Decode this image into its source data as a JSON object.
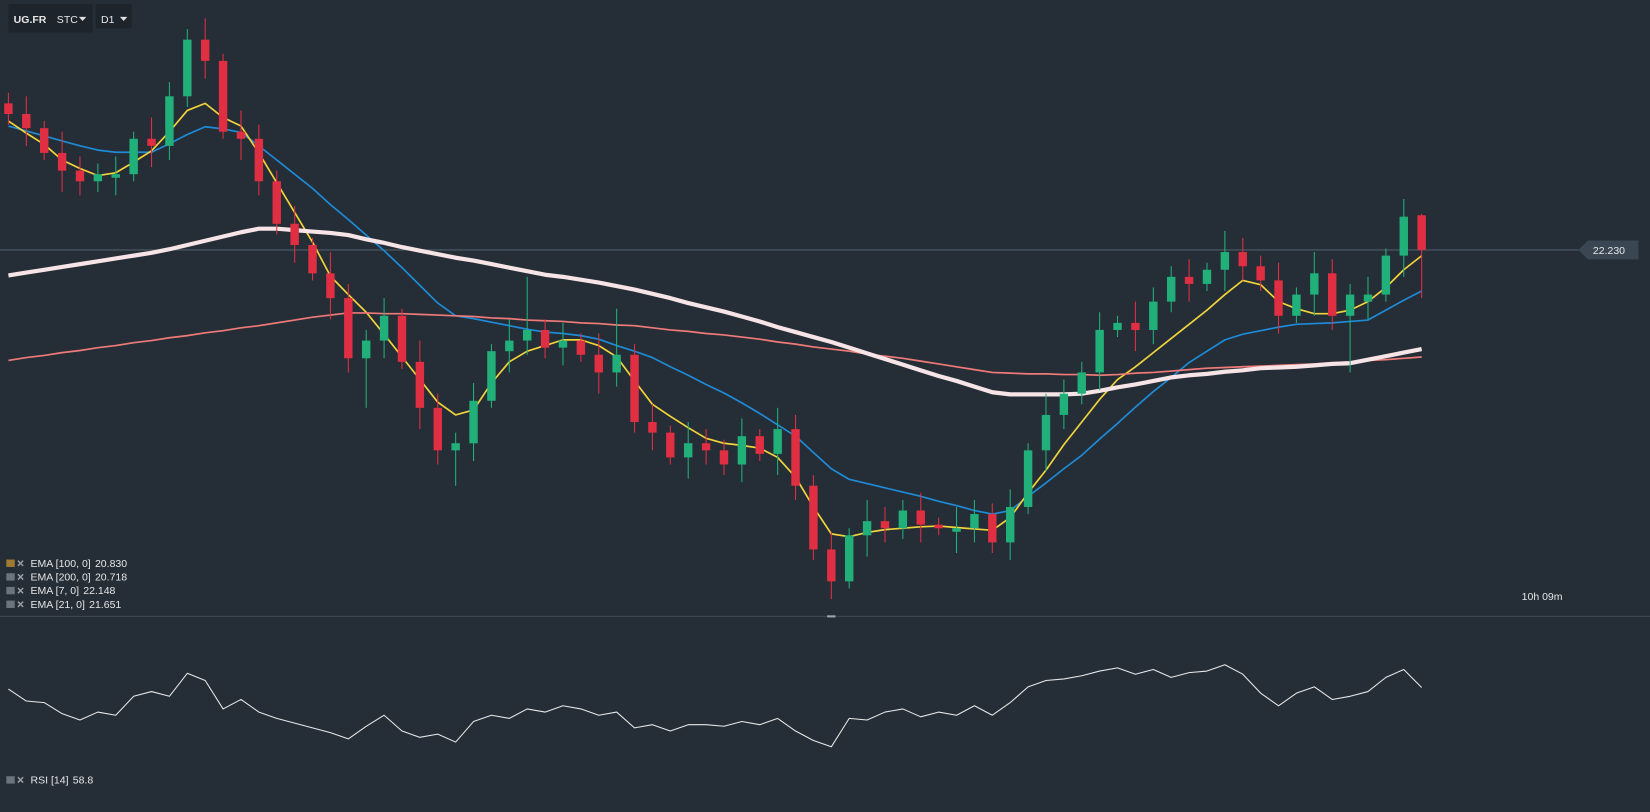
{
  "header": {
    "symbol": "UG.FR",
    "exchange": "STC",
    "timeframe": "D1"
  },
  "chart_data": [
    {
      "type": "candlestick",
      "ylim": [
        17.07,
        25.76
      ],
      "up_color": "#22b07a",
      "down_color": "#e02f42",
      "open": [
        24.3,
        24.15,
        23.95,
        23.6,
        23.35,
        23.2,
        23.25,
        23.3,
        23.8,
        23.7,
        24.4,
        25.2,
        24.9,
        23.9,
        23.8,
        23.2,
        22.6,
        22.3,
        21.9,
        21.55,
        20.7,
        20.95,
        21.3,
        20.65,
        20.0,
        19.4,
        19.5,
        20.1,
        20.8,
        20.95,
        21.1,
        20.85,
        20.95,
        20.75,
        20.5,
        20.75,
        19.8,
        19.65,
        19.3,
        19.5,
        19.4,
        19.2,
        19.6,
        19.35,
        19.7,
        18.9,
        18.0,
        17.55,
        18.2,
        18.4,
        18.3,
        18.55,
        18.35,
        18.25,
        18.3,
        18.5,
        18.1,
        18.6,
        19.4,
        19.9,
        20.2,
        20.5,
        21.1,
        21.2,
        21.1,
        21.5,
        21.85,
        21.75,
        21.95,
        22.2,
        22.0,
        21.8,
        21.3,
        21.6,
        21.9,
        21.3,
        21.5,
        21.6,
        22.15,
        22.72
      ],
      "high": [
        24.45,
        24.4,
        24.05,
        23.9,
        23.55,
        23.45,
        23.55,
        23.9,
        24.1,
        24.6,
        25.35,
        25.5,
        25.0,
        24.2,
        24.0,
        23.35,
        22.85,
        22.4,
        22.2,
        21.75,
        21.1,
        21.55,
        21.4,
        20.95,
        20.2,
        19.65,
        20.35,
        20.9,
        21.25,
        21.85,
        21.25,
        21.2,
        21.05,
        21.05,
        21.4,
        20.9,
        20.05,
        19.75,
        19.8,
        19.7,
        19.55,
        19.85,
        19.7,
        20.0,
        19.9,
        19.05,
        18.25,
        18.3,
        18.7,
        18.6,
        18.7,
        18.8,
        18.45,
        18.6,
        18.7,
        18.65,
        18.85,
        19.5,
        20.2,
        20.4,
        20.65,
        21.35,
        21.3,
        21.5,
        21.7,
        22.0,
        22.1,
        22.05,
        22.5,
        22.4,
        22.15,
        22.05,
        21.7,
        22.2,
        22.1,
        21.75,
        21.85,
        22.25,
        22.95,
        22.74
      ],
      "low": [
        24.0,
        23.7,
        23.5,
        23.05,
        23.0,
        23.05,
        23.0,
        23.2,
        23.4,
        23.5,
        24.25,
        24.65,
        23.8,
        23.5,
        23.0,
        22.45,
        22.05,
        21.8,
        21.25,
        20.5,
        20.0,
        20.7,
        20.55,
        19.7,
        19.2,
        18.9,
        19.25,
        20.0,
        20.5,
        20.75,
        20.7,
        20.6,
        20.65,
        20.2,
        20.3,
        19.65,
        19.4,
        19.2,
        19.0,
        19.2,
        19.05,
        18.95,
        19.25,
        19.05,
        18.7,
        17.85,
        17.3,
        17.45,
        17.9,
        18.1,
        18.15,
        18.1,
        18.2,
        17.95,
        18.1,
        17.95,
        17.85,
        18.5,
        19.1,
        19.7,
        20.05,
        20.25,
        21.0,
        20.8,
        20.9,
        21.35,
        21.5,
        21.65,
        21.65,
        21.8,
        21.65,
        21.05,
        21.2,
        21.3,
        21.1,
        20.5,
        21.25,
        21.5,
        21.85,
        21.55
      ],
      "close": [
        24.15,
        23.95,
        23.6,
        23.35,
        23.2,
        23.3,
        23.3,
        23.8,
        23.7,
        24.4,
        25.2,
        24.9,
        23.9,
        23.8,
        23.2,
        22.6,
        22.3,
        21.9,
        21.55,
        20.7,
        20.95,
        21.3,
        20.65,
        20.0,
        19.4,
        19.5,
        20.1,
        20.8,
        20.95,
        21.1,
        20.85,
        20.95,
        20.75,
        20.5,
        20.75,
        19.8,
        19.65,
        19.3,
        19.5,
        19.4,
        19.2,
        19.6,
        19.35,
        19.7,
        18.9,
        18.0,
        17.55,
        18.2,
        18.4,
        18.3,
        18.55,
        18.35,
        18.3,
        18.3,
        18.5,
        18.1,
        18.6,
        19.4,
        19.9,
        20.2,
        20.5,
        21.1,
        21.2,
        21.1,
        21.5,
        21.85,
        21.75,
        21.95,
        22.2,
        22.0,
        21.8,
        21.3,
        21.6,
        21.9,
        21.3,
        21.6,
        21.6,
        22.15,
        22.7,
        22.23
      ],
      "series": [
        {
          "name": "EMA [100,  0]",
          "last": {
            "value": 20.83,
            "label": "20.830"
          },
          "color": "#f7e4e6",
          "width": 4,
          "values": [
            21.87,
            21.91,
            21.95,
            21.99,
            22.03,
            22.07,
            22.11,
            22.15,
            22.19,
            22.24,
            22.3,
            22.36,
            22.42,
            22.48,
            22.53,
            22.53,
            22.51,
            22.49,
            22.47,
            22.44,
            22.38,
            22.33,
            22.27,
            22.22,
            22.17,
            22.12,
            22.08,
            22.03,
            21.98,
            21.93,
            21.88,
            21.85,
            21.81,
            21.77,
            21.72,
            21.67,
            21.61,
            21.55,
            21.48,
            21.42,
            21.36,
            21.29,
            21.22,
            21.14,
            21.07,
            21.0,
            20.93,
            20.85,
            20.77,
            20.69,
            20.61,
            20.53,
            20.45,
            20.38,
            20.3,
            20.22,
            20.19,
            20.19,
            20.19,
            20.19,
            20.2,
            20.24,
            20.29,
            20.33,
            20.38,
            20.43,
            20.46,
            20.48,
            20.51,
            20.53,
            20.56,
            20.57,
            20.58,
            20.6,
            20.62,
            20.63,
            20.68,
            20.73,
            20.78,
            20.83
          ]
        },
        {
          "name": "EMA [200,  0]",
          "last": 20.718,
          "color": "#f07a78",
          "width": 1.6,
          "values": [
            20.67,
            20.71,
            20.74,
            20.78,
            20.81,
            20.85,
            20.88,
            20.92,
            20.95,
            20.99,
            21.02,
            21.06,
            21.09,
            21.13,
            21.16,
            21.2,
            21.24,
            21.28,
            21.31,
            21.34,
            21.34,
            21.33,
            21.33,
            21.32,
            21.31,
            21.3,
            21.29,
            21.27,
            21.26,
            21.24,
            21.23,
            21.22,
            21.2,
            21.19,
            21.17,
            21.16,
            21.13,
            21.1,
            21.08,
            21.05,
            21.03,
            21.0,
            20.97,
            20.93,
            20.9,
            20.86,
            20.83,
            20.8,
            20.76,
            20.73,
            20.7,
            20.66,
            20.62,
            20.58,
            20.54,
            20.5,
            20.49,
            20.48,
            20.48,
            20.47,
            20.47,
            20.46,
            20.47,
            20.49,
            20.5,
            20.52,
            20.54,
            20.56,
            20.57,
            20.58,
            20.59,
            20.6,
            20.61,
            20.62,
            20.64,
            20.65,
            20.67,
            20.68,
            20.7,
            20.718
          ]
        },
        {
          "name": "EMA [7,  0]",
          "last": 22.148,
          "color": "#f2d43a",
          "width": 1.6,
          "values": [
            24.05,
            23.88,
            23.72,
            23.5,
            23.38,
            23.28,
            23.32,
            23.47,
            23.63,
            23.9,
            24.2,
            24.3,
            24.1,
            23.98,
            23.6,
            23.18,
            22.76,
            22.34,
            21.86,
            21.6,
            21.35,
            21.04,
            20.72,
            20.4,
            20.08,
            19.9,
            19.97,
            20.35,
            20.65,
            20.8,
            20.88,
            20.96,
            20.96,
            20.88,
            20.72,
            20.38,
            20.05,
            19.88,
            19.72,
            19.57,
            19.5,
            19.47,
            19.43,
            19.3,
            19.02,
            18.6,
            18.22,
            18.18,
            18.24,
            18.28,
            18.3,
            18.32,
            18.33,
            18.31,
            18.29,
            18.27,
            18.45,
            18.8,
            19.12,
            19.48,
            19.8,
            20.12,
            20.4,
            20.58,
            20.78,
            20.98,
            21.18,
            21.38,
            21.6,
            21.8,
            21.74,
            21.5,
            21.4,
            21.33,
            21.33,
            21.38,
            21.5,
            21.7,
            21.95,
            22.148
          ]
        },
        {
          "name": "EMA [21,  0]",
          "last": 21.651,
          "color": "#1f8ad6",
          "width": 1.6,
          "values": [
            23.98,
            23.91,
            23.84,
            23.77,
            23.7,
            23.64,
            23.61,
            23.61,
            23.61,
            23.73,
            23.86,
            23.97,
            23.94,
            23.89,
            23.7,
            23.5,
            23.3,
            23.1,
            22.87,
            22.66,
            22.44,
            22.22,
            21.98,
            21.73,
            21.48,
            21.3,
            21.26,
            21.21,
            21.16,
            21.11,
            21.07,
            21.05,
            21.02,
            20.97,
            20.88,
            20.8,
            20.71,
            20.58,
            20.46,
            20.33,
            20.21,
            20.07,
            19.92,
            19.76,
            19.6,
            19.37,
            19.14,
            18.99,
            18.93,
            18.87,
            18.81,
            18.75,
            18.68,
            18.62,
            18.55,
            18.5,
            18.55,
            18.75,
            18.94,
            19.14,
            19.33,
            19.56,
            19.78,
            20.01,
            20.23,
            20.43,
            20.64,
            20.8,
            20.96,
            21.04,
            21.09,
            21.14,
            21.18,
            21.19,
            21.2,
            21.22,
            21.24,
            21.38,
            21.52,
            21.651
          ]
        }
      ],
      "last_price": {
        "value": 22.23,
        "label": "22.230"
      },
      "countdown": "10h 09m"
    },
    {
      "type": "line",
      "name": "RSI [14]",
      "last": 58.8,
      "color": "#e8e8e8",
      "ylim": [
        20,
        80
      ],
      "values": [
        58.3,
        54.5,
        54,
        50.5,
        48.5,
        51,
        50,
        56,
        57.5,
        56,
        63.3,
        61,
        52,
        55,
        51,
        49,
        47.5,
        46,
        44.5,
        42.5,
        46.5,
        50,
        45,
        43,
        44,
        41.5,
        48,
        50,
        49,
        52,
        51,
        53,
        52,
        50,
        51,
        46,
        47,
        45,
        47,
        47,
        46.5,
        48,
        47,
        49,
        45,
        42,
        40,
        49,
        48.5,
        51,
        52,
        49.5,
        51,
        50,
        53,
        50,
        54,
        59,
        61,
        61.5,
        62.5,
        64,
        65,
        63,
        64.5,
        62,
        63.5,
        64,
        66,
        63,
        57,
        53,
        57,
        59,
        55,
        56,
        57.5,
        62,
        64.5,
        58.8
      ]
    }
  ]
}
